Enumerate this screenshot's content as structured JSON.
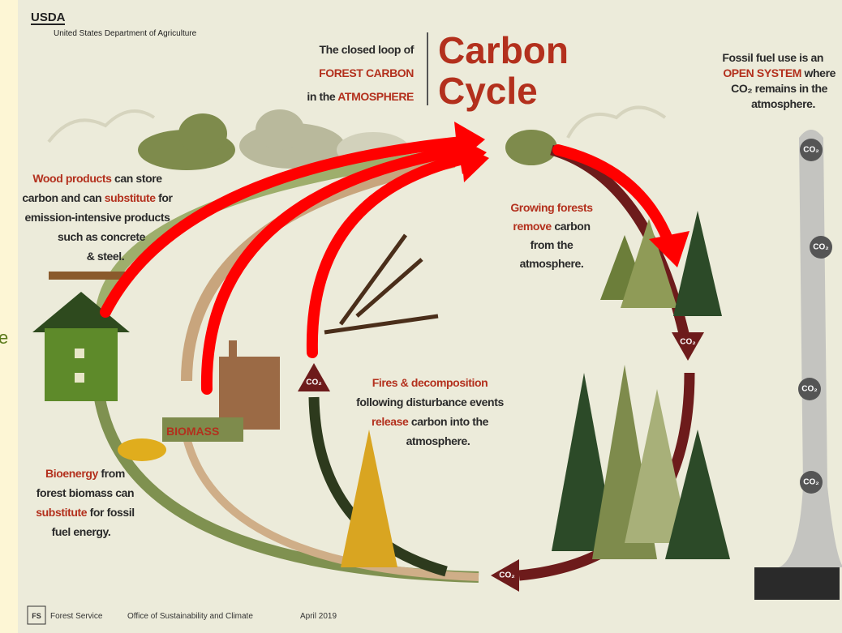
{
  "page_edge_text": "e",
  "header": {
    "agency_short": "USDA",
    "agency": "United States Department of Agriculture"
  },
  "title": {
    "line1": "The closed loop of",
    "line2": "FOREST CARBON",
    "line3_prefix": "in the ",
    "line3_highlight": "ATMOSPHERE",
    "main_line1": "Carbon",
    "main_line2": "Cycle"
  },
  "fossil_note": {
    "line1": "Fossil fuel use is an",
    "line2_highlight": "OPEN SYSTEM",
    "line2_rest": " where",
    "line3": "CO₂ remains in the",
    "line4": "atmosphere."
  },
  "wood_products": {
    "line1_highlight": "Wood products",
    "line1_rest": " can store",
    "line2_prefix": "carbon and can ",
    "line2_highlight": "substitute",
    "line2_rest": " for",
    "line3": "emission-intensive products",
    "line4": "such as concrete",
    "line5": "& steel."
  },
  "growing_forests": {
    "line1_highlight": "Growing forests",
    "line2_highlight": "remove",
    "line2_rest": " carbon",
    "line3": "from the",
    "line4": "atmosphere."
  },
  "fires": {
    "line1_highlight": "Fires & decomposition",
    "line2": "following disturbance events",
    "line3_highlight": "release",
    "line3_rest": " carbon into the",
    "line4": "atmosphere."
  },
  "bioenergy": {
    "line1_highlight": "Bioenergy",
    "line1_rest": " from",
    "line2": "forest biomass can",
    "line3_highlight": "substitute",
    "line3_rest": " for fossil",
    "line4": "fuel energy."
  },
  "biomass_label": "BIOMASS",
  "co2_labels": [
    "CO₂",
    "CO₂",
    "CO₂",
    "CO₂",
    "CO₂",
    "CO₂",
    "CO₂"
  ],
  "footer": {
    "logo": "FS",
    "agency": "Forest Service",
    "office": "Office of Sustainability and Climate",
    "date": "April 2019"
  }
}
